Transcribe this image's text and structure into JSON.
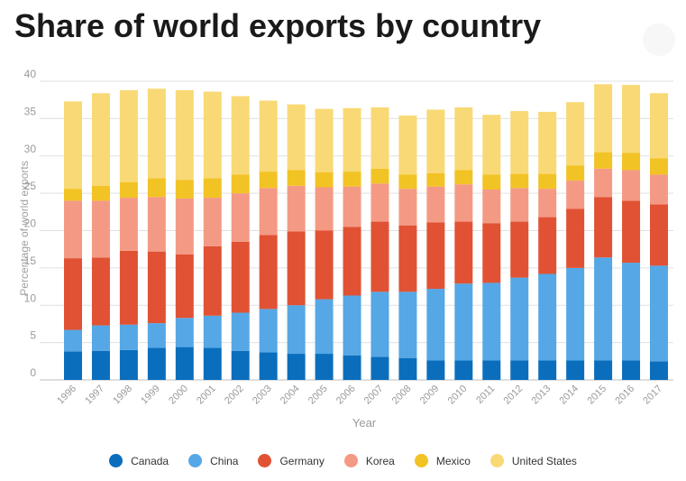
{
  "title": "Share of world exports by country",
  "chart_data": {
    "type": "bar",
    "stacked": true,
    "title": "Share of world exports by country",
    "xlabel": "Year",
    "ylabel": "Percentage of world exports",
    "ylim": [
      0,
      40
    ],
    "yticks": [
      "0",
      "5",
      "10",
      "15",
      "20",
      "25",
      "30",
      "35",
      "40"
    ],
    "grid": true,
    "legend_position": "bottom",
    "categories": [
      "1996",
      "1997",
      "1998",
      "1999",
      "2000",
      "2001",
      "2002",
      "2003",
      "2004",
      "2005",
      "2006",
      "2007",
      "2008",
      "2009",
      "2010",
      "2011",
      "2012",
      "2013",
      "2014",
      "2015",
      "2016",
      "2017"
    ],
    "series": [
      {
        "name": "Canada",
        "color": "#0a6ebd",
        "values": [
          3.8,
          3.9,
          4.0,
          4.3,
          4.4,
          4.3,
          3.9,
          3.7,
          3.5,
          3.5,
          3.3,
          3.1,
          2.9,
          2.6,
          2.6,
          2.6,
          2.6,
          2.6,
          2.6,
          2.6,
          2.6,
          2.5
        ]
      },
      {
        "name": "China",
        "color": "#55a7e6",
        "values": [
          2.9,
          3.4,
          3.4,
          3.3,
          3.9,
          4.3,
          5.1,
          5.8,
          6.5,
          7.3,
          8.0,
          8.7,
          8.9,
          9.6,
          10.3,
          10.4,
          11.1,
          11.6,
          12.4,
          13.8,
          13.1,
          12.8
        ]
      },
      {
        "name": "Germany",
        "color": "#e05233",
        "values": [
          9.6,
          9.1,
          9.9,
          9.6,
          8.5,
          9.3,
          9.5,
          9.9,
          9.9,
          9.2,
          9.2,
          9.4,
          8.9,
          8.9,
          8.3,
          8.0,
          7.5,
          7.6,
          7.9,
          8.1,
          8.3,
          8.2
        ]
      },
      {
        "name": "Korea",
        "color": "#f49a84",
        "values": [
          7.7,
          7.6,
          7.1,
          7.3,
          7.5,
          6.5,
          6.5,
          6.3,
          6.1,
          5.8,
          5.4,
          5.1,
          4.9,
          4.8,
          5.0,
          4.5,
          4.5,
          3.8,
          3.8,
          3.8,
          4.1,
          4.0
        ]
      },
      {
        "name": "Mexico",
        "color": "#f2c324",
        "values": [
          1.6,
          2.0,
          2.1,
          2.5,
          2.5,
          2.6,
          2.5,
          2.2,
          2.1,
          2.0,
          2.0,
          2.0,
          1.9,
          1.8,
          1.9,
          2.0,
          1.9,
          2.0,
          2.0,
          2.2,
          2.3,
          2.2
        ]
      },
      {
        "name": "United States",
        "color": "#f9d975",
        "values": [
          11.7,
          12.4,
          12.3,
          12.0,
          12.0,
          11.6,
          10.5,
          9.5,
          8.8,
          8.5,
          8.5,
          8.2,
          7.9,
          8.5,
          8.4,
          8.0,
          8.4,
          8.3,
          8.5,
          9.1,
          9.1,
          8.7
        ]
      }
    ]
  }
}
